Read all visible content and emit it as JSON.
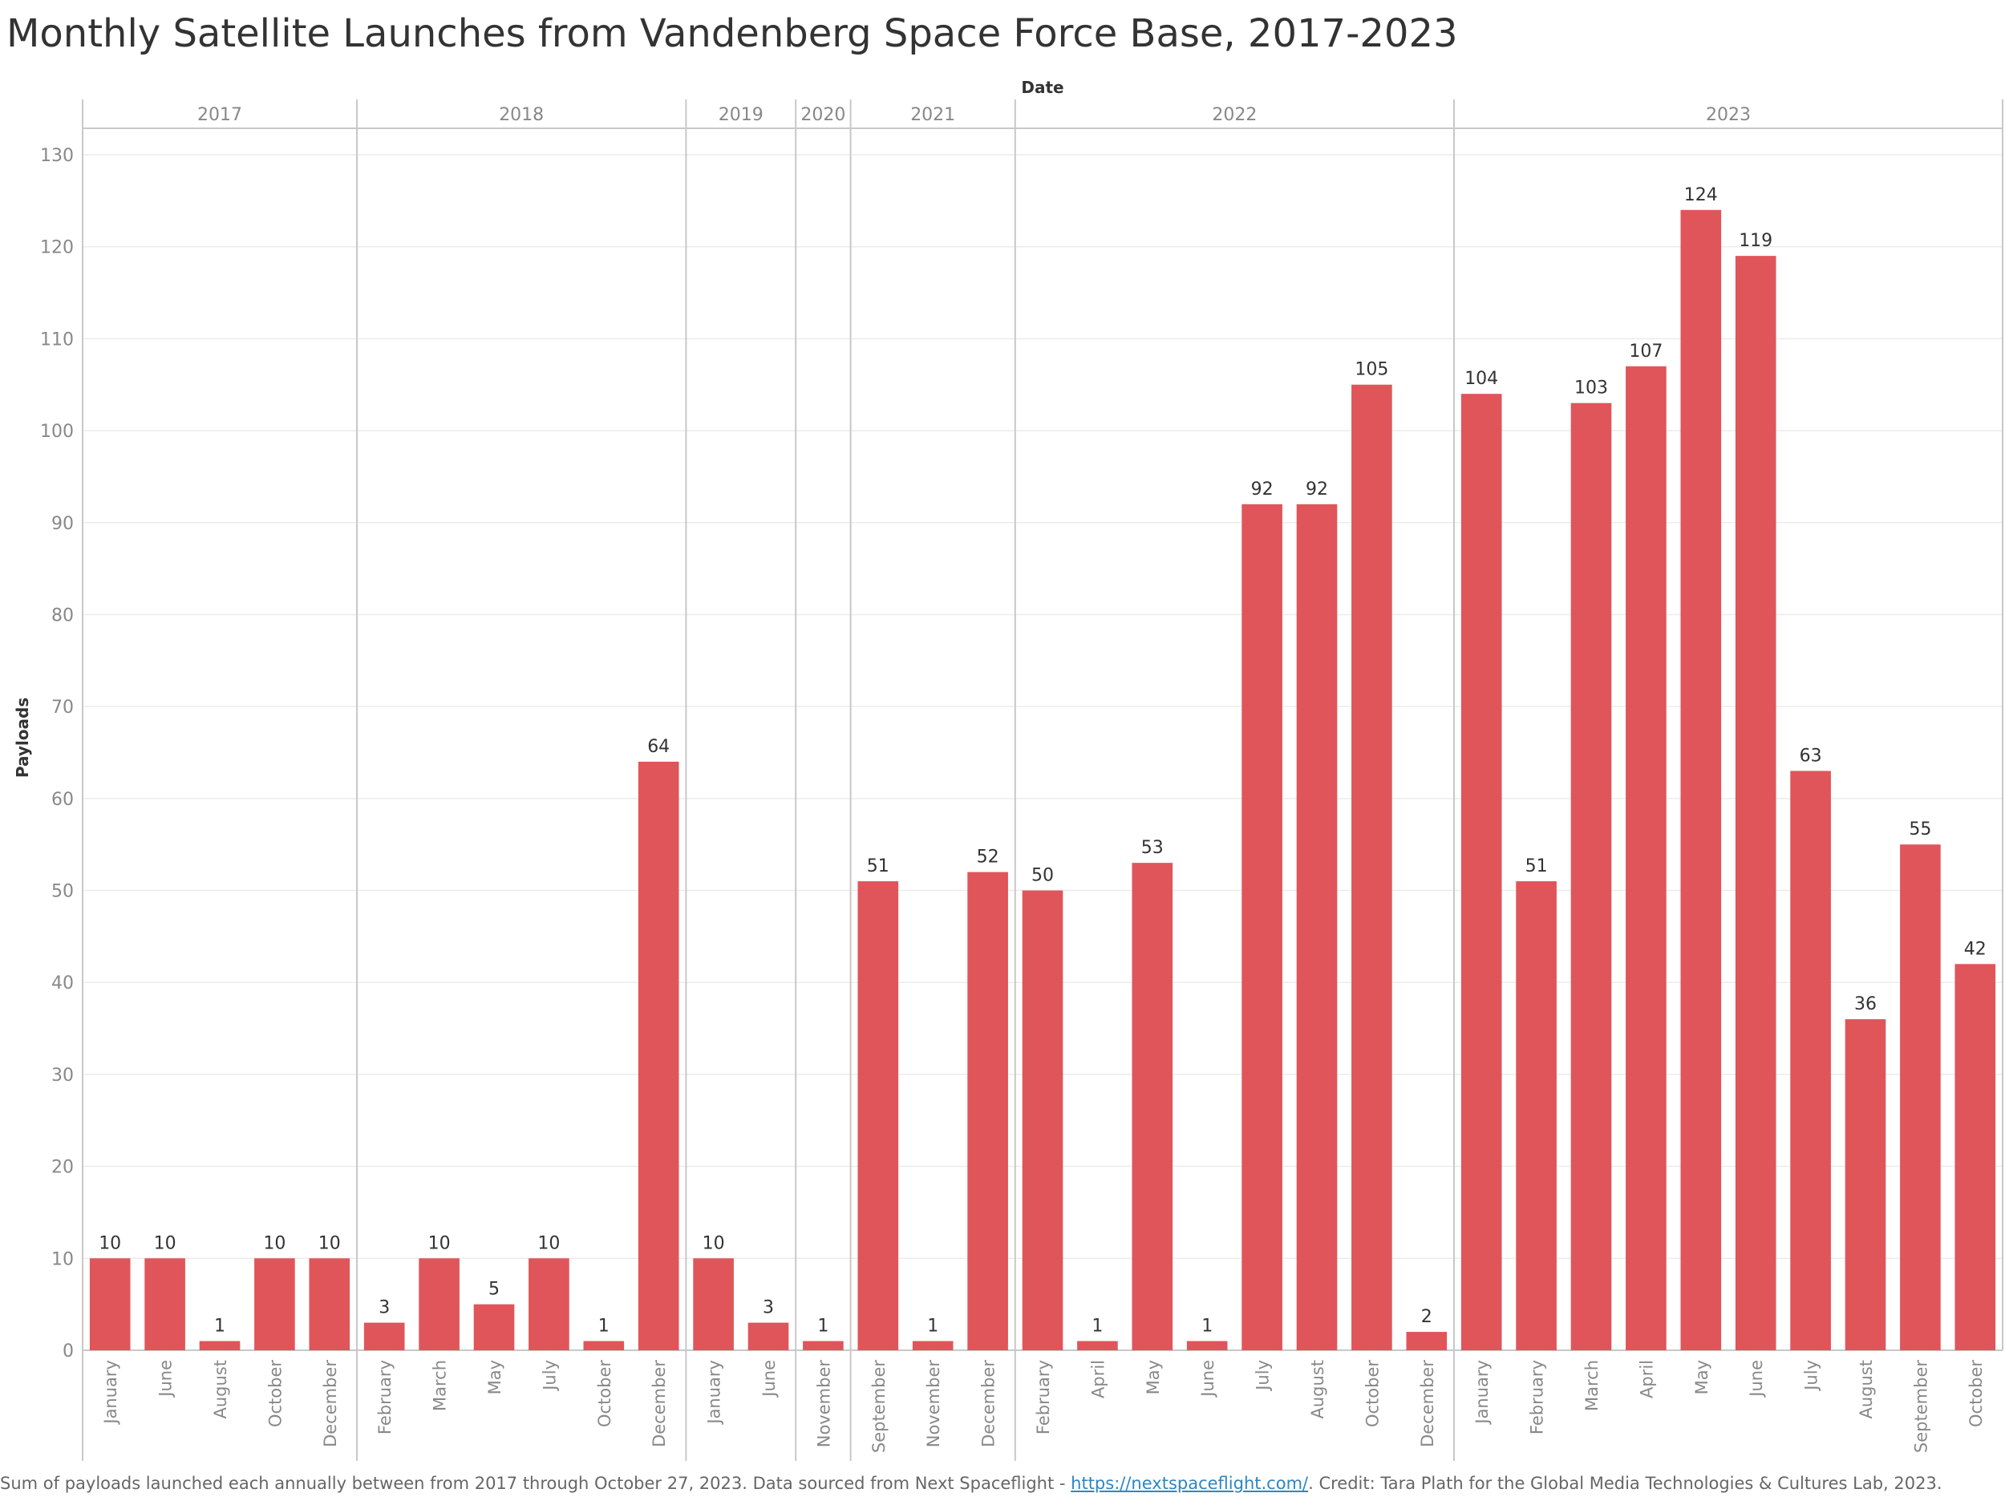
{
  "title": "Monthly Satellite Launches from Vandenberg Space Force Base, 2017-2023",
  "footer": {
    "pre": "Sum of payloads launched each annually between from 2017 through October 27, 2023. Data sourced from Next Spaceflight - ",
    "link": "https://nextspaceflight.com/",
    "post": ". Credit: Tara Plath for the Global Media Technologies & Cultures Lab, 2023."
  },
  "colors": {
    "bar": "#e0555a",
    "grid": "#ececec",
    "axis": "#c8c8c8",
    "tick": "#888888",
    "label": "#333333"
  },
  "chart_data": {
    "type": "bar",
    "xlabel": "Date",
    "ylabel": "Payloads",
    "ylim": [
      0,
      130
    ],
    "yticks": [
      0,
      10,
      20,
      30,
      40,
      50,
      60,
      70,
      80,
      90,
      100,
      110,
      120,
      130
    ],
    "grid": true,
    "groups": [
      {
        "year": "2017",
        "months": [
          "January",
          "June",
          "August",
          "October",
          "December"
        ],
        "values": [
          10,
          10,
          1,
          10,
          10
        ]
      },
      {
        "year": "2018",
        "months": [
          "February",
          "March",
          "May",
          "July",
          "October",
          "December"
        ],
        "values": [
          3,
          10,
          5,
          10,
          1,
          64
        ]
      },
      {
        "year": "2019",
        "months": [
          "January",
          "June"
        ],
        "values": [
          10,
          3
        ]
      },
      {
        "year": "2020",
        "months": [
          "November"
        ],
        "values": [
          1
        ]
      },
      {
        "year": "2021",
        "months": [
          "September",
          "November",
          "December"
        ],
        "values": [
          51,
          1,
          52
        ]
      },
      {
        "year": "2022",
        "months": [
          "February",
          "April",
          "May",
          "June",
          "July",
          "August",
          "October",
          "December"
        ],
        "values": [
          50,
          1,
          53,
          1,
          92,
          92,
          105,
          2
        ]
      },
      {
        "year": "2023",
        "months": [
          "January",
          "February",
          "March",
          "April",
          "May",
          "June",
          "July",
          "August",
          "September",
          "October"
        ],
        "values": [
          104,
          51,
          103,
          107,
          124,
          119,
          63,
          36,
          55,
          42
        ]
      }
    ]
  }
}
